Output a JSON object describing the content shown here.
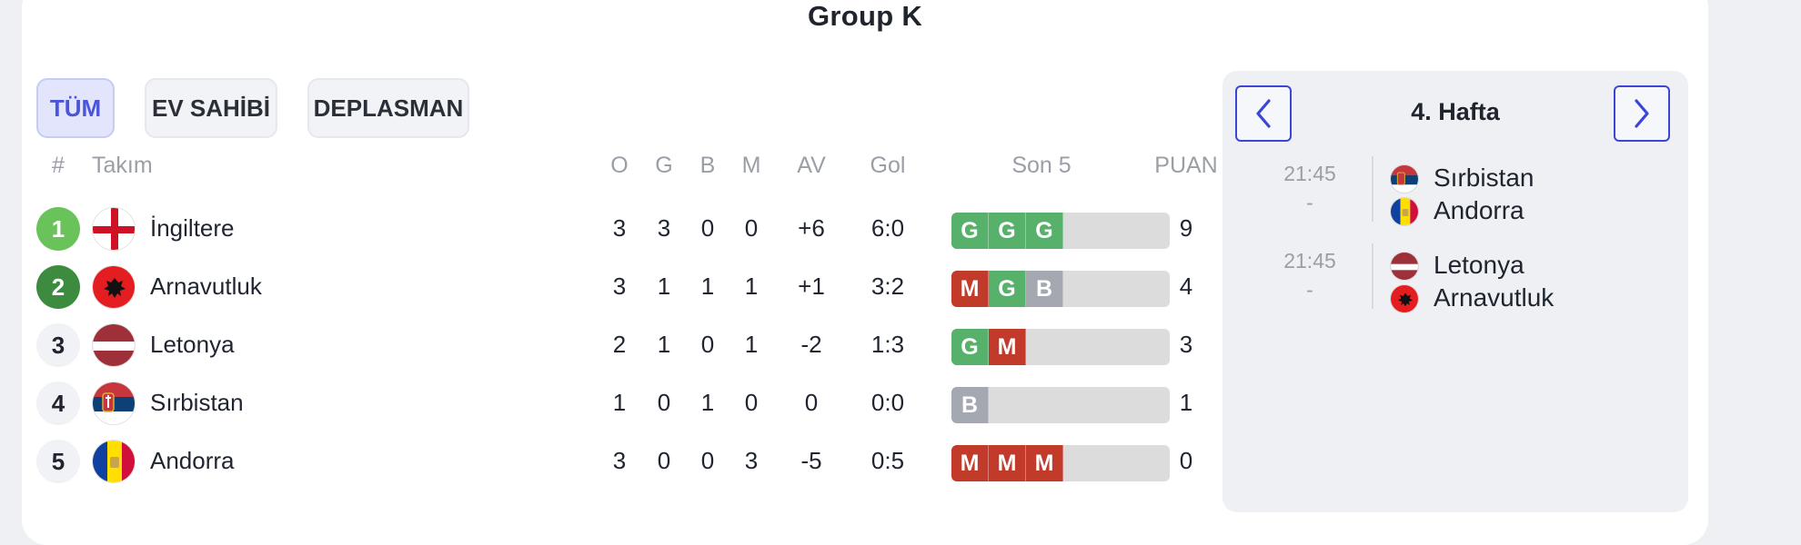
{
  "group_title": "Group K",
  "tabs": [
    {
      "label": "TÜM",
      "active": true
    },
    {
      "label": "EV SAHİBİ",
      "active": false
    },
    {
      "label": "DEPLASMAN",
      "active": false
    }
  ],
  "table_headers": {
    "rank": "#",
    "team": "Takım",
    "played": "O",
    "won": "G",
    "drawn": "B",
    "lost": "M",
    "diff": "AV",
    "goals": "Gol",
    "form": "Son 5",
    "points": "PUAN"
  },
  "standings": [
    {
      "rank": "1",
      "team": "İngiltere",
      "played": "3",
      "won": "3",
      "drawn": "0",
      "lost": "0",
      "diff": "+6",
      "goals": "6:0",
      "form": [
        "G",
        "G",
        "G"
      ],
      "points": "9"
    },
    {
      "rank": "2",
      "team": "Arnavutluk",
      "played": "3",
      "won": "1",
      "drawn": "1",
      "lost": "1",
      "diff": "+1",
      "goals": "3:2",
      "form": [
        "M",
        "G",
        "B"
      ],
      "points": "4"
    },
    {
      "rank": "3",
      "team": "Letonya",
      "played": "2",
      "won": "1",
      "drawn": "0",
      "lost": "1",
      "diff": "-2",
      "goals": "1:3",
      "form": [
        "G",
        "M"
      ],
      "points": "3"
    },
    {
      "rank": "4",
      "team": "Sırbistan",
      "played": "1",
      "won": "0",
      "drawn": "1",
      "lost": "0",
      "diff": "0",
      "goals": "0:0",
      "form": [
        "B"
      ],
      "points": "1"
    },
    {
      "rank": "5",
      "team": "Andorra",
      "played": "3",
      "won": "0",
      "drawn": "0",
      "lost": "3",
      "diff": "-5",
      "goals": "0:5",
      "form": [
        "M",
        "M",
        "M"
      ],
      "points": "0"
    }
  ],
  "rank_colors": {
    "1": "#6ac25b",
    "2": "#3d8b3e",
    "3": "#f1f2f5",
    "4": "#f1f2f5",
    "5": "#f1f2f5"
  },
  "form_colors": {
    "G": "#57b16a",
    "M": "#c13a2a",
    "B": "#a4a8b0"
  },
  "fixtures": {
    "week_title": "4. Hafta",
    "prev_icon": "chevron-left-icon",
    "next_icon": "chevron-right-icon",
    "matches": [
      {
        "time": "21:45",
        "score": "-",
        "home": "Sırbistan",
        "away": "Andorra"
      },
      {
        "time": "21:45",
        "score": "-",
        "home": "Letonya",
        "away": "Arnavutluk"
      }
    ]
  },
  "accent_color": "#3b45d6"
}
